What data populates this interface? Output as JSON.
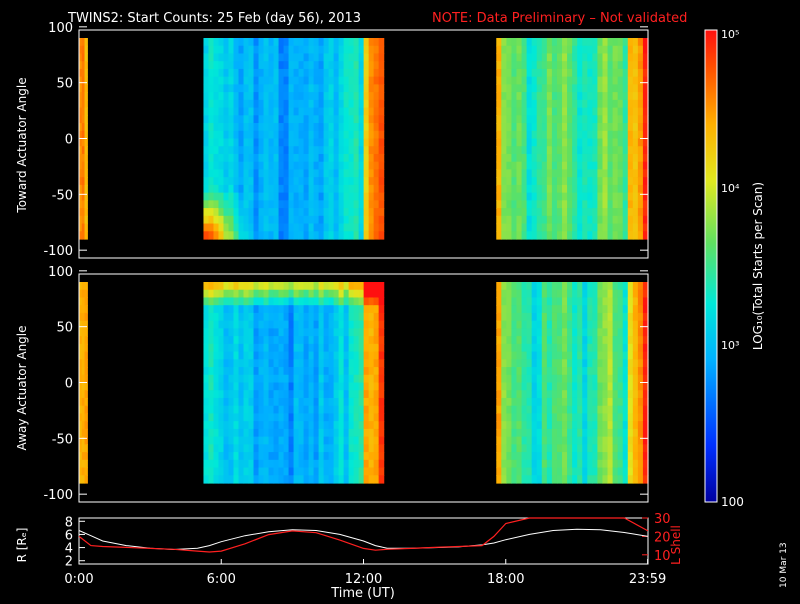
{
  "title": "TWINS2: Start Counts: 25 Feb (day  56), 2013",
  "note": "NOTE: Data Preliminary – Not validated",
  "date_stamp": "10 Mar 13",
  "colors": {
    "background": "#000000",
    "text": "#ffffff",
    "note": "#ff2020",
    "l_shell": "#ff2020",
    "r_line": "#ffffff"
  },
  "chart_data": [
    {
      "type": "heatmap",
      "ylabel": "Toward Actuator Angle",
      "yticks": [
        "100",
        "50",
        "0",
        "-50",
        "-100"
      ],
      "ylim": [
        -110,
        110
      ],
      "x_range_hours": [
        0,
        24
      ],
      "data_intervals_hours": [
        [
          0.0,
          0.35
        ],
        [
          5.25,
          12.85
        ],
        [
          17.6,
          24.0
        ]
      ],
      "angle_range_deg": [
        -90,
        90
      ],
      "log_range": [
        2,
        5
      ]
    },
    {
      "type": "heatmap",
      "ylabel": "Away Actuator Angle",
      "yticks": [
        "100",
        "50",
        "0",
        "-50",
        "-100"
      ],
      "ylim": [
        -110,
        110
      ],
      "x_range_hours": [
        0,
        24
      ],
      "data_intervals_hours": [
        [
          0.0,
          0.35
        ],
        [
          5.25,
          12.85
        ],
        [
          17.6,
          24.0
        ]
      ],
      "angle_range_deg": [
        -90,
        90
      ],
      "log_range": [
        2,
        5
      ]
    },
    {
      "type": "line",
      "ylabel_left": "R [Rₑ]",
      "ylabel_right": "L Shell",
      "left_ticks": [
        "8",
        "6",
        "4",
        "2"
      ],
      "right_ticks": [
        "30",
        "20",
        "10"
      ],
      "ylim_left": [
        1.5,
        8.5
      ],
      "ylim_right": [
        5,
        30
      ],
      "xlabel": "Time (UT)",
      "xticks": [
        "0:00",
        "6:00",
        "12:00",
        "18:00",
        "23:59"
      ],
      "x": [
        0,
        0.5,
        1,
        2,
        3,
        4,
        5,
        5.5,
        6,
        7,
        8,
        9,
        10,
        11,
        12,
        12.5,
        13,
        14,
        15,
        16,
        17,
        17.5,
        18,
        19,
        20,
        21,
        22,
        23,
        24
      ],
      "series": [
        {
          "values": [
            6.6,
            5.8,
            5.0,
            4.3,
            3.9,
            3.7,
            3.9,
            4.3,
            4.9,
            5.8,
            6.4,
            6.7,
            6.6,
            6.0,
            5.0,
            4.3,
            3.9,
            3.9,
            4.0,
            4.1,
            4.4,
            4.7,
            5.2,
            6.0,
            6.6,
            6.8,
            6.7,
            6.3,
            5.7
          ]
        },
        {
          "values": [
            20,
            15,
            14.5,
            14,
            13.5,
            13,
            12,
            11.5,
            12,
            16,
            21,
            23,
            22,
            18,
            13.5,
            12.5,
            13,
            13.5,
            14,
            14.5,
            15,
            20,
            27,
            33,
            33,
            33,
            33,
            33,
            23
          ]
        }
      ]
    }
  ],
  "colorbar": {
    "labels": [
      "10⁵",
      "10⁴",
      "10³",
      "100"
    ],
    "label": "LOG₁₀(Total Starts per Scan)"
  }
}
